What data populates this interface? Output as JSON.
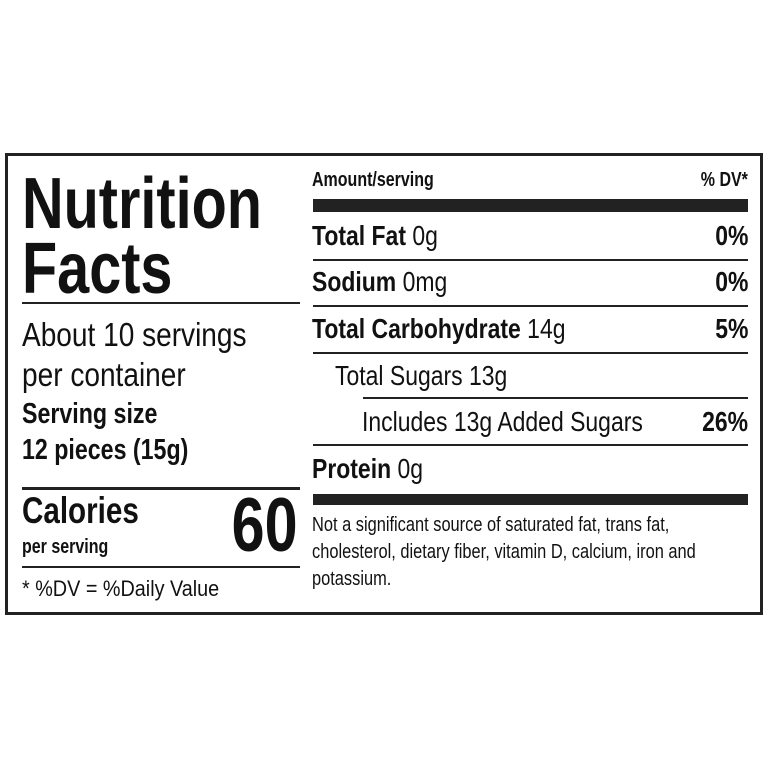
{
  "title_line1": "Nutrition",
  "title_line2": "Facts",
  "servings_line1": "About 10 servings",
  "servings_line2": "per container",
  "serving_size_label": "Serving size",
  "serving_size_value": "12 pieces (15g)",
  "calories_label": "Calories",
  "calories_sub": "per serving",
  "calories_value": "60",
  "dv_note": "* %DV = %Daily Value",
  "header": {
    "amount": "Amount/serving",
    "dv": "% DV*"
  },
  "nutrients": [
    {
      "name": "Total Fat",
      "amount": "0g",
      "dv": "0%"
    },
    {
      "name": "Sodium",
      "amount": "0mg",
      "dv": "0%"
    },
    {
      "name": "Total Carbohydrate",
      "amount": "14g",
      "dv": "5%"
    },
    {
      "name": "Total Sugars 13g"
    },
    {
      "name": "Includes 13g Added Sugars",
      "dv": "26%"
    },
    {
      "name": "Protein",
      "amount": "0g"
    }
  ],
  "footnote": [
    "Not a significant source of saturated fat, trans fat,",
    "cholesterol, dietary fiber, vitamin D, calcium, iron and",
    "potassium."
  ]
}
